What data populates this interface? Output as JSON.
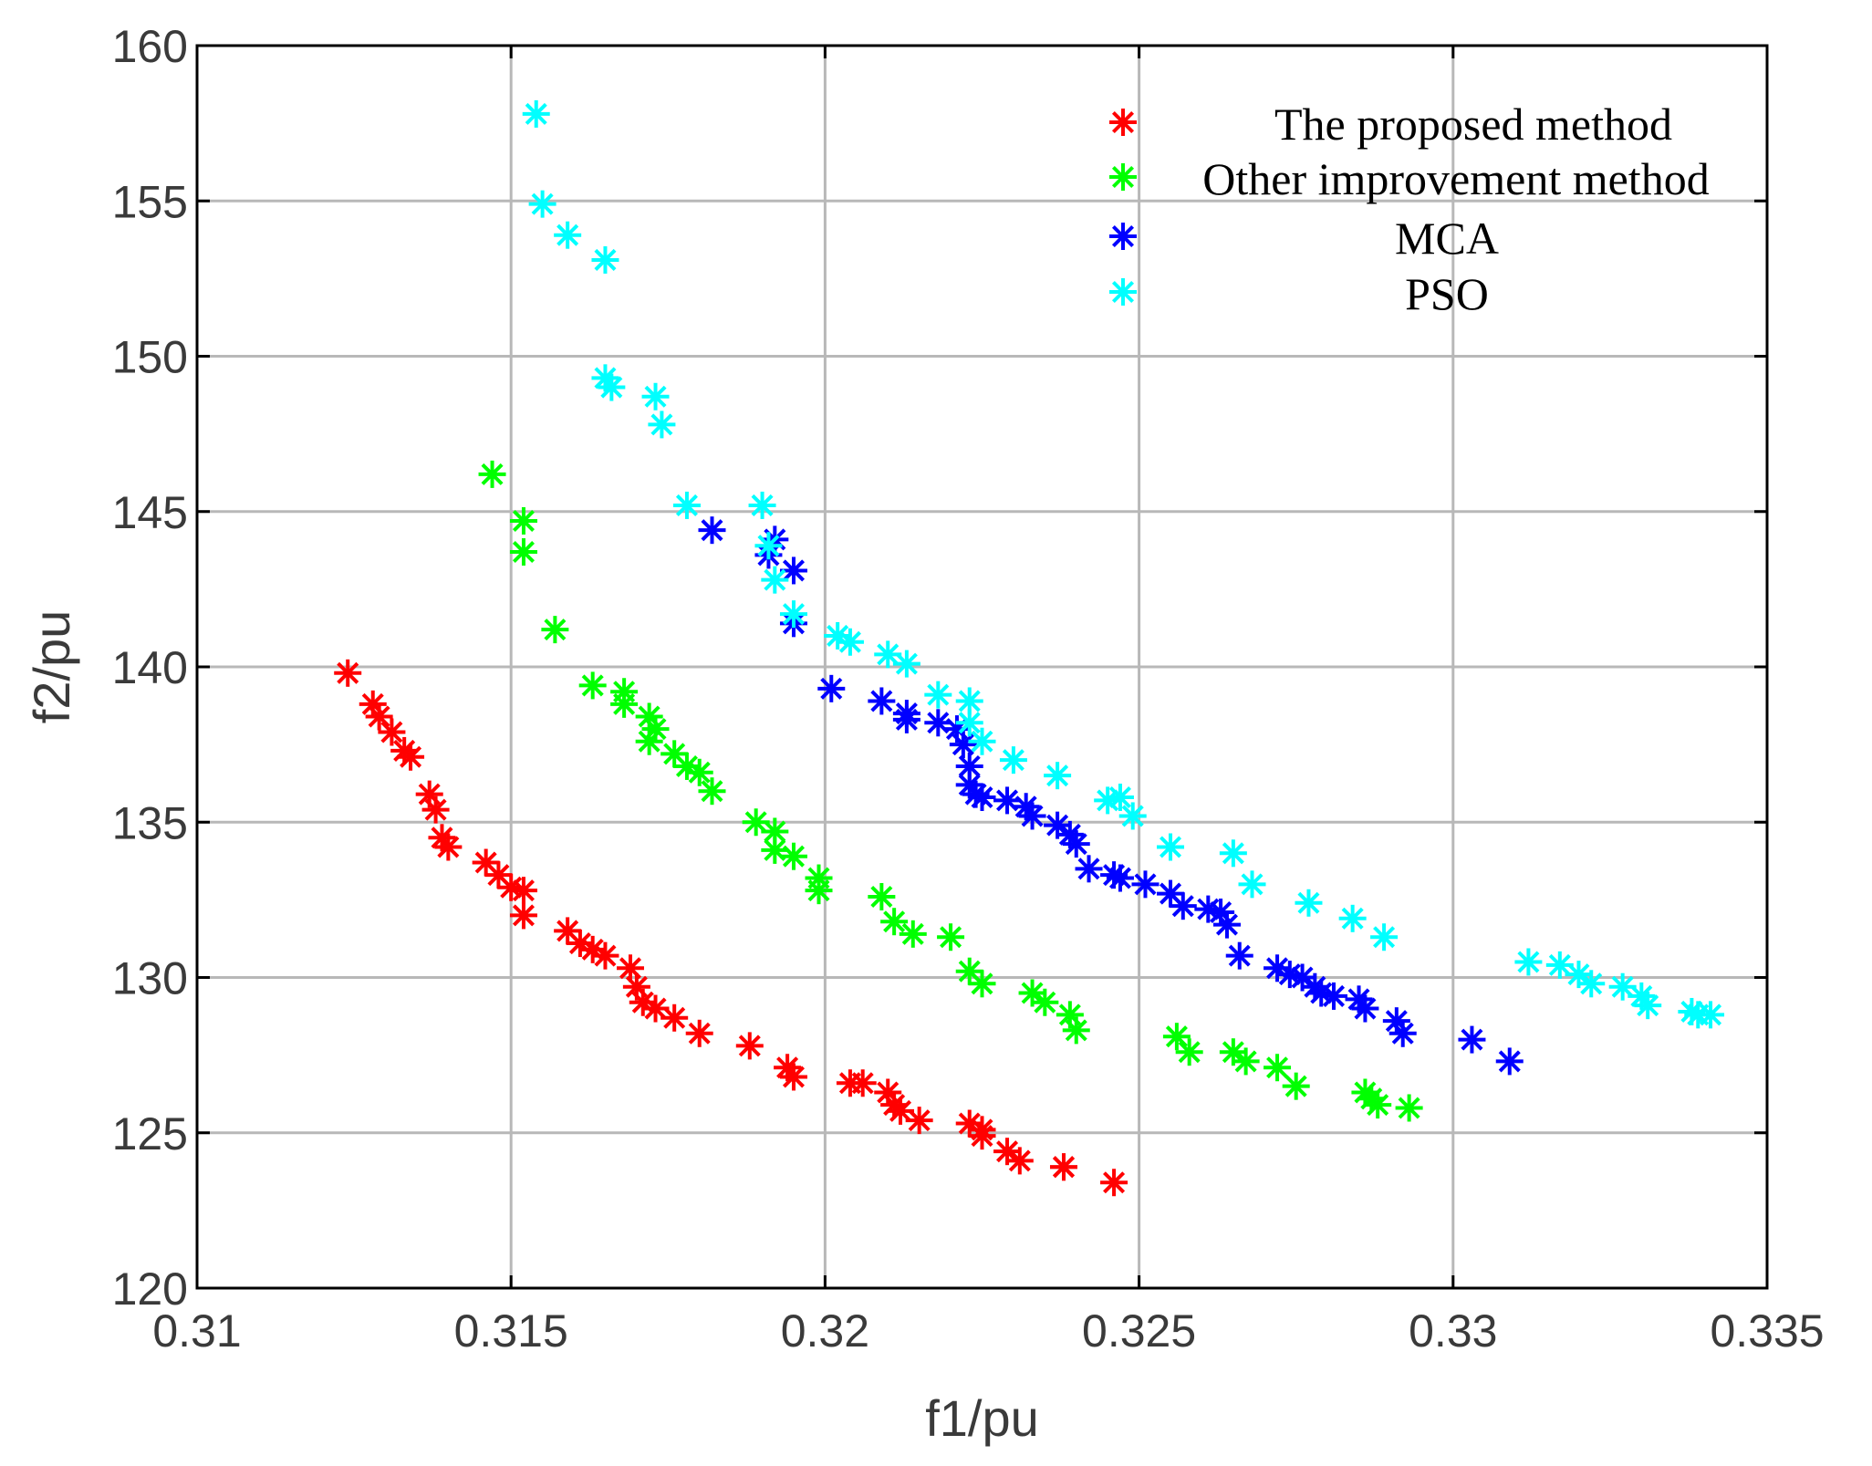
{
  "chart_data": {
    "type": "scatter",
    "title": "",
    "xlabel": "f1/pu",
    "ylabel": "f2/pu",
    "xlim": [
      0.31,
      0.335
    ],
    "ylim": [
      120,
      160
    ],
    "xticks": [
      0.31,
      0.315,
      0.32,
      0.325,
      0.33,
      0.335
    ],
    "xtick_labels": [
      "0.31",
      "0.315",
      "0.32",
      "0.325",
      "0.33",
      "0.335"
    ],
    "yticks": [
      120,
      125,
      130,
      135,
      140,
      145,
      150,
      155,
      160
    ],
    "ytick_labels": [
      "120",
      "125",
      "130",
      "135",
      "140",
      "145",
      "150",
      "155",
      "160"
    ],
    "grid": true,
    "legend_position": "top-right",
    "marker": "asterisk",
    "series": [
      {
        "name": "The proposed method",
        "color": "#ff0000",
        "points": [
          [
            0.3124,
            139.8
          ],
          [
            0.3128,
            138.8
          ],
          [
            0.3129,
            138.4
          ],
          [
            0.3131,
            137.9
          ],
          [
            0.3133,
            137.3
          ],
          [
            0.3134,
            137.1
          ],
          [
            0.3137,
            135.9
          ],
          [
            0.3138,
            135.4
          ],
          [
            0.3139,
            134.5
          ],
          [
            0.314,
            134.2
          ],
          [
            0.3146,
            133.7
          ],
          [
            0.3148,
            133.3
          ],
          [
            0.315,
            132.9
          ],
          [
            0.3152,
            132.8
          ],
          [
            0.3152,
            132.0
          ],
          [
            0.3159,
            131.5
          ],
          [
            0.3161,
            131.1
          ],
          [
            0.3163,
            130.9
          ],
          [
            0.3165,
            130.7
          ],
          [
            0.3169,
            130.3
          ],
          [
            0.317,
            129.7
          ],
          [
            0.3171,
            129.2
          ],
          [
            0.3173,
            129.0
          ],
          [
            0.3176,
            128.7
          ],
          [
            0.318,
            128.2
          ],
          [
            0.3188,
            127.8
          ],
          [
            0.3194,
            127.1
          ],
          [
            0.3195,
            126.8
          ],
          [
            0.3204,
            126.6
          ],
          [
            0.3206,
            126.6
          ],
          [
            0.321,
            126.3
          ],
          [
            0.3211,
            125.9
          ],
          [
            0.3212,
            125.7
          ],
          [
            0.3215,
            125.4
          ],
          [
            0.3223,
            125.3
          ],
          [
            0.3225,
            125.1
          ],
          [
            0.3225,
            124.9
          ],
          [
            0.3229,
            124.4
          ],
          [
            0.3231,
            124.1
          ],
          [
            0.3238,
            123.9
          ],
          [
            0.3238,
            123.9
          ],
          [
            0.3246,
            123.4
          ]
        ]
      },
      {
        "name": "Other improvement method",
        "color": "#00ff00",
        "points": [
          [
            0.3147,
            146.2
          ],
          [
            0.3152,
            144.7
          ],
          [
            0.3152,
            143.7
          ],
          [
            0.3157,
            141.2
          ],
          [
            0.3163,
            139.4
          ],
          [
            0.3168,
            139.2
          ],
          [
            0.3168,
            138.8
          ],
          [
            0.3172,
            138.4
          ],
          [
            0.3173,
            138.0
          ],
          [
            0.3172,
            137.6
          ],
          [
            0.3176,
            137.2
          ],
          [
            0.3178,
            136.8
          ],
          [
            0.318,
            136.6
          ],
          [
            0.3182,
            136.0
          ],
          [
            0.3189,
            135.0
          ],
          [
            0.3192,
            134.7
          ],
          [
            0.3192,
            134.1
          ],
          [
            0.3195,
            133.9
          ],
          [
            0.3199,
            133.2
          ],
          [
            0.3199,
            132.8
          ],
          [
            0.3209,
            132.6
          ],
          [
            0.3211,
            131.8
          ],
          [
            0.3214,
            131.4
          ],
          [
            0.322,
            131.3
          ],
          [
            0.3223,
            130.2
          ],
          [
            0.3225,
            129.8
          ],
          [
            0.3233,
            129.5
          ],
          [
            0.3235,
            129.2
          ],
          [
            0.3239,
            128.8
          ],
          [
            0.324,
            128.3
          ],
          [
            0.3256,
            128.1
          ],
          [
            0.3258,
            127.6
          ],
          [
            0.3265,
            127.6
          ],
          [
            0.3267,
            127.3
          ],
          [
            0.3272,
            127.1
          ],
          [
            0.3275,
            126.5
          ],
          [
            0.3286,
            126.3
          ],
          [
            0.3287,
            126.1
          ],
          [
            0.3288,
            125.9
          ],
          [
            0.3293,
            125.8
          ]
        ]
      },
      {
        "name": "MCA",
        "color": "#0000ff",
        "points": [
          [
            0.3182,
            144.4
          ],
          [
            0.3192,
            144.1
          ],
          [
            0.3191,
            143.6
          ],
          [
            0.3195,
            143.1
          ],
          [
            0.3195,
            141.4
          ],
          [
            0.3201,
            139.3
          ],
          [
            0.3209,
            138.9
          ],
          [
            0.3213,
            138.5
          ],
          [
            0.3213,
            138.3
          ],
          [
            0.3218,
            138.2
          ],
          [
            0.3221,
            138.0
          ],
          [
            0.3222,
            137.5
          ],
          [
            0.3223,
            136.8
          ],
          [
            0.3223,
            136.2
          ],
          [
            0.3224,
            135.9
          ],
          [
            0.3225,
            135.8
          ],
          [
            0.3229,
            135.7
          ],
          [
            0.3232,
            135.5
          ],
          [
            0.3233,
            135.2
          ],
          [
            0.3237,
            134.9
          ],
          [
            0.3239,
            134.6
          ],
          [
            0.324,
            134.3
          ],
          [
            0.3242,
            133.5
          ],
          [
            0.3246,
            133.3
          ],
          [
            0.3247,
            133.2
          ],
          [
            0.3251,
            133.0
          ],
          [
            0.3255,
            132.7
          ],
          [
            0.3257,
            132.3
          ],
          [
            0.3261,
            132.2
          ],
          [
            0.3263,
            132.1
          ],
          [
            0.3264,
            131.7
          ],
          [
            0.3266,
            130.7
          ],
          [
            0.3272,
            130.3
          ],
          [
            0.3274,
            130.1
          ],
          [
            0.3276,
            130.0
          ],
          [
            0.3278,
            129.7
          ],
          [
            0.3279,
            129.5
          ],
          [
            0.3281,
            129.4
          ],
          [
            0.3285,
            129.3
          ],
          [
            0.3286,
            129.0
          ],
          [
            0.3291,
            128.6
          ],
          [
            0.3292,
            128.2
          ],
          [
            0.3303,
            128.0
          ],
          [
            0.3309,
            127.3
          ]
        ]
      },
      {
        "name": "PSO",
        "color": "#00ffff",
        "points": [
          [
            0.3154,
            157.8
          ],
          [
            0.3155,
            154.9
          ],
          [
            0.3159,
            153.9
          ],
          [
            0.3165,
            153.1
          ],
          [
            0.3165,
            149.3
          ],
          [
            0.3166,
            149.0
          ],
          [
            0.3173,
            148.7
          ],
          [
            0.3174,
            147.8
          ],
          [
            0.3178,
            145.2
          ],
          [
            0.319,
            145.2
          ],
          [
            0.3191,
            143.9
          ],
          [
            0.3192,
            142.8
          ],
          [
            0.3195,
            141.7
          ],
          [
            0.3202,
            141.0
          ],
          [
            0.3204,
            140.8
          ],
          [
            0.321,
            140.4
          ],
          [
            0.3213,
            140.1
          ],
          [
            0.3218,
            139.1
          ],
          [
            0.3223,
            138.9
          ],
          [
            0.3223,
            138.2
          ],
          [
            0.3225,
            137.6
          ],
          [
            0.323,
            137.0
          ],
          [
            0.3237,
            136.5
          ],
          [
            0.3245,
            135.7
          ],
          [
            0.3247,
            135.8
          ],
          [
            0.3249,
            135.2
          ],
          [
            0.3255,
            134.2
          ],
          [
            0.3265,
            134.0
          ],
          [
            0.3268,
            133.0
          ],
          [
            0.3277,
            132.4
          ],
          [
            0.3284,
            131.9
          ],
          [
            0.3289,
            131.3
          ],
          [
            0.3312,
            130.5
          ],
          [
            0.3317,
            130.4
          ],
          [
            0.332,
            130.1
          ],
          [
            0.3322,
            129.8
          ],
          [
            0.3327,
            129.7
          ],
          [
            0.333,
            129.4
          ],
          [
            0.3331,
            129.1
          ],
          [
            0.3338,
            128.9
          ],
          [
            0.3339,
            128.8
          ],
          [
            0.3341,
            128.8
          ]
        ]
      }
    ]
  }
}
